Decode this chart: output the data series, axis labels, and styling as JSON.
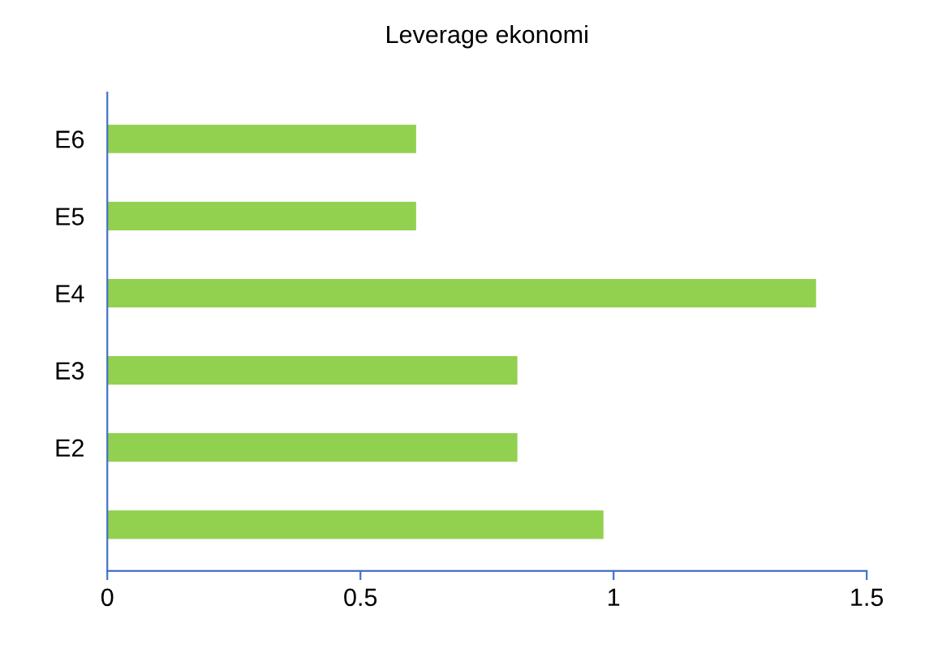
{
  "chart_data": {
    "type": "bar",
    "orientation": "horizontal",
    "title": "Leverage ekonomi",
    "categories": [
      "E6",
      "E5",
      "E4",
      "E3",
      "E2",
      null
    ],
    "values": [
      0.61,
      0.61,
      1.4,
      0.81,
      0.81,
      0.98
    ],
    "color": "#92d050",
    "xlim": [
      0,
      1.5
    ],
    "xticks": [
      0,
      0.5,
      1,
      1.5
    ],
    "grid": false,
    "legend": false
  }
}
